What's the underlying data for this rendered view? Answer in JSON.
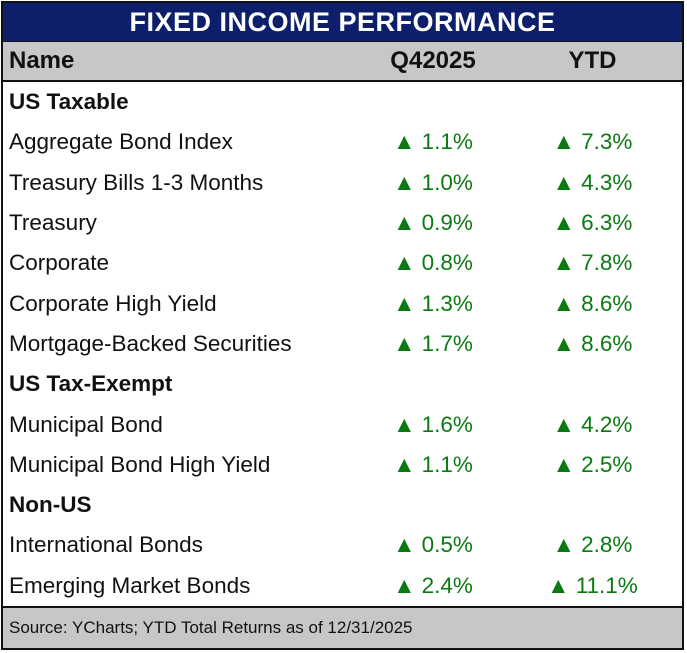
{
  "title": "FIXED INCOME PERFORMANCE",
  "columns": {
    "name": "Name",
    "period": "Q42025",
    "ytd": "YTD"
  },
  "colors": {
    "title_bg": "#0d1f6b",
    "header_bg": "#c7c7c7",
    "positive": "#0b7a12"
  },
  "arrow_icon": "triangle-up-icon",
  "sections": [
    {
      "label": "US Taxable",
      "rows": [
        {
          "name": "Aggregate Bond Index",
          "q": "1.1%",
          "ytd": "7.3%"
        },
        {
          "name": "Treasury Bills 1-3 Months",
          "q": "1.0%",
          "ytd": "4.3%"
        },
        {
          "name": "Treasury",
          "q": "0.9%",
          "ytd": "6.3%"
        },
        {
          "name": "Corporate",
          "q": "0.8%",
          "ytd": "7.8%"
        },
        {
          "name": "Corporate High Yield",
          "q": "1.3%",
          "ytd": "8.6%"
        },
        {
          "name": "Mortgage-Backed Securities",
          "q": "1.7%",
          "ytd": "8.6%"
        }
      ]
    },
    {
      "label": "US Tax-Exempt",
      "rows": [
        {
          "name": "Municipal Bond",
          "q": "1.6%",
          "ytd": "4.2%"
        },
        {
          "name": "Municipal Bond High Yield",
          "q": "1.1%",
          "ytd": "2.5%"
        }
      ]
    },
    {
      "label": "Non-US",
      "rows": [
        {
          "name": "International Bonds",
          "q": "0.5%",
          "ytd": "2.8%"
        },
        {
          "name": "Emerging Market Bonds",
          "q": "2.4%",
          "ytd": "11.1%"
        }
      ]
    }
  ],
  "footer": "Source: YCharts; YTD Total Returns as of 12/31/2025"
}
